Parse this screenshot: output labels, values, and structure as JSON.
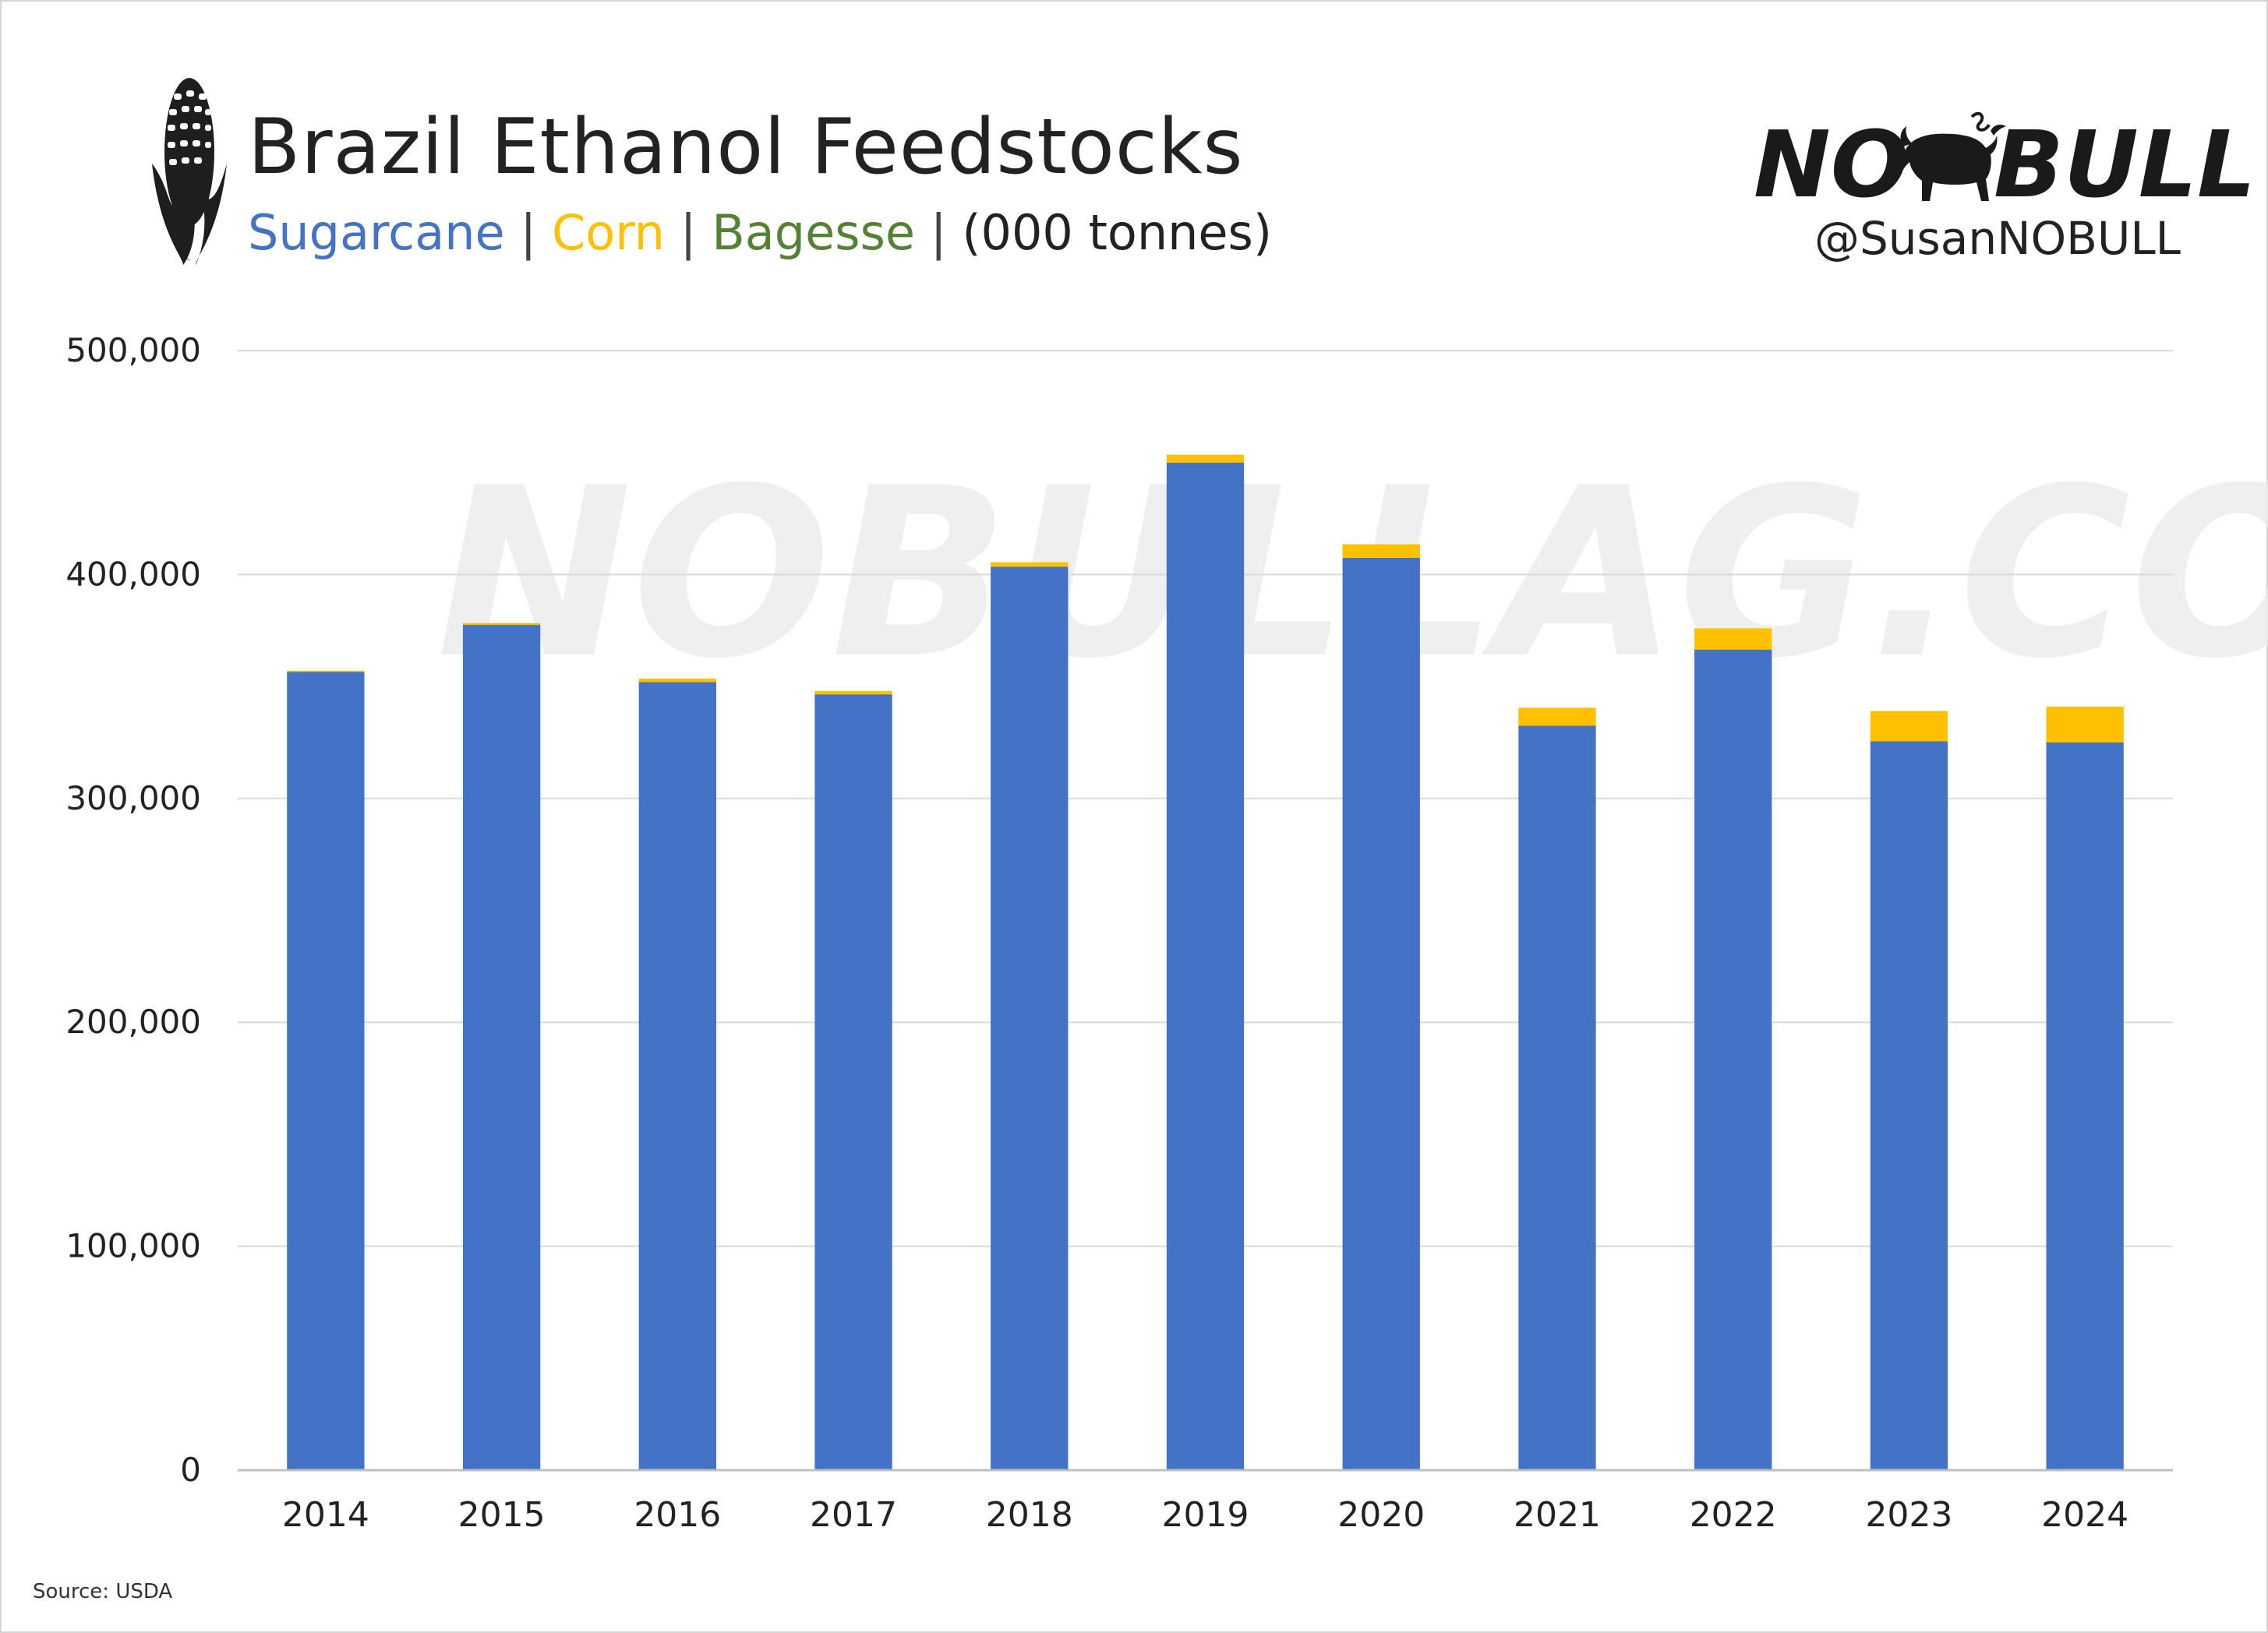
{
  "header": {
    "title": "Brazil Ethanol Feedstocks",
    "subtitle": {
      "sugarcane": "Sugarcane",
      "corn": "Corn",
      "bagesse": "Bagesse",
      "unit": "(000 tonnes)",
      "separator": "|"
    }
  },
  "brand": {
    "logo_text": "NO BULL",
    "handle": "@SusanNOBULL",
    "watermark": "NOBULLAG.COM"
  },
  "icons": {
    "left": "corn-cob-icon",
    "logo": "bull-icon"
  },
  "source": "Source: USDA",
  "colors": {
    "sugarcane": "#4472c4",
    "corn": "#ffc000",
    "bagesse": "#548235",
    "grid": "#d9d9d9",
    "text": "#222222"
  },
  "chart_data": {
    "type": "bar",
    "stacked": true,
    "title": "Brazil Ethanol Feedstocks",
    "subtitle": "Sugarcane | Corn | Bagesse | (000 tonnes)",
    "categories": [
      "2014",
      "2015",
      "2016",
      "2017",
      "2018",
      "2019",
      "2020",
      "2021",
      "2022",
      "2023",
      "2024"
    ],
    "series": [
      {
        "name": "Sugarcane",
        "values": [
          356500,
          377500,
          352000,
          346500,
          403500,
          450000,
          407500,
          332500,
          366500,
          325500,
          325000
        ]
      },
      {
        "name": "Corn",
        "values": [
          500,
          800,
          1500,
          1500,
          2000,
          3500,
          6000,
          8000,
          9500,
          13500,
          16000
        ]
      },
      {
        "name": "Bagesse",
        "values": [
          0,
          0,
          0,
          0,
          0,
          0,
          0,
          0,
          0,
          0,
          0
        ]
      }
    ],
    "yticks": [
      "0",
      "100,000",
      "200,000",
      "300,000",
      "400,000",
      "500,000"
    ],
    "ylim": [
      0,
      500000
    ],
    "grid": true,
    "legend": "subtitle",
    "xlabel": "",
    "ylabel": ""
  }
}
